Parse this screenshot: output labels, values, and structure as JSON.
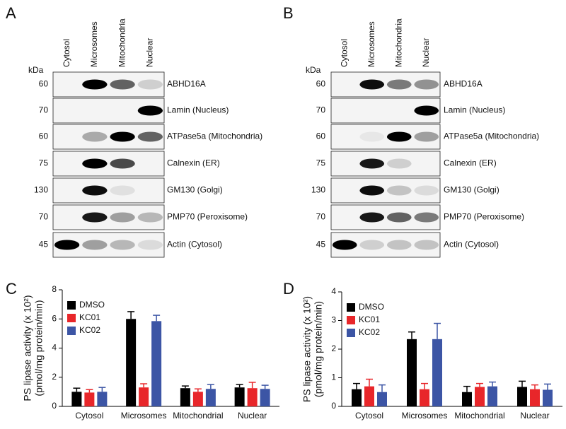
{
  "blots": [
    {
      "panel_label": "A",
      "unit": "kDa",
      "columns": [
        "Cytosol",
        "Microsomes",
        "Mitochondria",
        "Nuclear"
      ],
      "rows": [
        {
          "marker": 60,
          "label": "ABHD16A"
        },
        {
          "marker": 70,
          "label": "Lamin (Nucleus)"
        },
        {
          "marker": 60,
          "label": "ATPase5a (Mitochondria)"
        },
        {
          "marker": 75,
          "label": "Calnexin (ER)"
        },
        {
          "marker": 130,
          "label": "GM130 (Golgi)"
        },
        {
          "marker": 70,
          "label": "PMP70 (Peroxisome)"
        },
        {
          "marker": 45,
          "label": "Actin (Cytosol)"
        }
      ]
    },
    {
      "panel_label": "B",
      "unit": "kDa",
      "columns": [
        "Cytosol",
        "Microsomes",
        "Mitochondria",
        "Nuclear"
      ],
      "rows": [
        {
          "marker": 60,
          "label": "ABHD16A"
        },
        {
          "marker": 70,
          "label": "Lamin (Nucleus)"
        },
        {
          "marker": 60,
          "label": "ATPase5a (Mitochondria)"
        },
        {
          "marker": 75,
          "label": "Calnexin (ER)"
        },
        {
          "marker": 130,
          "label": "GM130 (Golgi)"
        },
        {
          "marker": 70,
          "label": "PMP70 (Peroxisome)"
        },
        {
          "marker": 45,
          "label": "Actin (Cytosol)"
        }
      ]
    }
  ],
  "chart_data": [
    {
      "type": "bar",
      "panel_label": "C",
      "y_label": [
        "PS lipase activity (x 10²)",
        "(pmol/mg protein/min)"
      ],
      "categories": [
        "Cytosol",
        "Microsomes",
        "Mitochondrial",
        "Nuclear"
      ],
      "series": [
        {
          "name": "DMSO",
          "color": "#000000",
          "values": [
            1.0,
            6.0,
            1.25,
            1.3
          ],
          "errors": [
            0.25,
            0.5,
            0.15,
            0.2
          ]
        },
        {
          "name": "KC01",
          "color": "#e8262a",
          "values": [
            0.95,
            1.3,
            1.0,
            1.25
          ],
          "errors": [
            0.2,
            0.25,
            0.2,
            0.4
          ]
        },
        {
          "name": "KC02",
          "color": "#3c55a5",
          "values": [
            1.0,
            5.85,
            1.2,
            1.2
          ],
          "errors": [
            0.3,
            0.4,
            0.3,
            0.25
          ]
        }
      ],
      "ylim": [
        0,
        8
      ],
      "yticks": [
        0,
        2,
        4,
        6,
        8
      ]
    },
    {
      "type": "bar",
      "panel_label": "D",
      "y_label": [
        "PS lipase activity (x 10²)",
        "(pmol/mg protein/min)"
      ],
      "categories": [
        "Cytosol",
        "Microsomes",
        "Mitochondrial",
        "Nuclear"
      ],
      "series": [
        {
          "name": "DMSO",
          "color": "#000000",
          "values": [
            0.6,
            2.35,
            0.5,
            0.68
          ],
          "errors": [
            0.2,
            0.25,
            0.2,
            0.2
          ]
        },
        {
          "name": "KC01",
          "color": "#e8262a",
          "values": [
            0.7,
            0.6,
            0.68,
            0.6
          ],
          "errors": [
            0.25,
            0.2,
            0.12,
            0.15
          ]
        },
        {
          "name": "KC02",
          "color": "#3c55a5",
          "values": [
            0.5,
            2.35,
            0.7,
            0.58
          ],
          "errors": [
            0.25,
            0.55,
            0.15,
            0.2
          ]
        }
      ],
      "ylim": [
        0,
        4
      ],
      "yticks": [
        0,
        1,
        2,
        3,
        4
      ]
    }
  ]
}
